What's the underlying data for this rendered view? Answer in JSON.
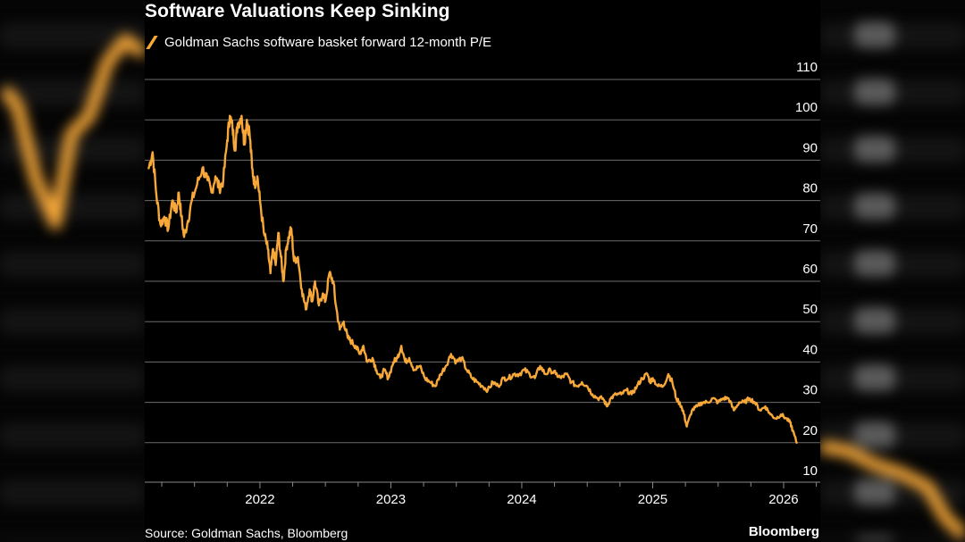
{
  "chart_data": {
    "type": "line",
    "title": "Software Valuations Keep Sinking",
    "series": [
      {
        "name": "Goldman Sachs software basket forward 12-month P/E",
        "color": "#f7a839",
        "points": [
          [
            2021.15,
            88
          ],
          [
            2021.18,
            92
          ],
          [
            2021.21,
            81
          ],
          [
            2021.24,
            74
          ],
          [
            2021.27,
            76
          ],
          [
            2021.3,
            73
          ],
          [
            2021.33,
            80
          ],
          [
            2021.36,
            77
          ],
          [
            2021.38,
            82
          ],
          [
            2021.4,
            76
          ],
          [
            2021.42,
            71
          ],
          [
            2021.45,
            75
          ],
          [
            2021.48,
            80
          ],
          [
            2021.52,
            84
          ],
          [
            2021.56,
            88
          ],
          [
            2021.6,
            85
          ],
          [
            2021.63,
            82
          ],
          [
            2021.66,
            86
          ],
          [
            2021.69,
            83
          ],
          [
            2021.72,
            85
          ],
          [
            2021.75,
            95
          ],
          [
            2021.77,
            101
          ],
          [
            2021.79,
            98
          ],
          [
            2021.81,
            93
          ],
          [
            2021.83,
            99
          ],
          [
            2021.86,
            101
          ],
          [
            2021.88,
            94
          ],
          [
            2021.9,
            100
          ],
          [
            2021.92,
            97
          ],
          [
            2021.94,
            88
          ],
          [
            2021.96,
            84
          ],
          [
            2021.98,
            86
          ],
          [
            2022.0,
            80
          ],
          [
            2022.03,
            72
          ],
          [
            2022.06,
            68
          ],
          [
            2022.08,
            62
          ],
          [
            2022.1,
            68
          ],
          [
            2022.12,
            64
          ],
          [
            2022.14,
            72
          ],
          [
            2022.16,
            66
          ],
          [
            2022.18,
            60
          ],
          [
            2022.2,
            68
          ],
          [
            2022.22,
            71
          ],
          [
            2022.24,
            73
          ],
          [
            2022.26,
            65
          ],
          [
            2022.29,
            66
          ],
          [
            2022.32,
            58
          ],
          [
            2022.35,
            53
          ],
          [
            2022.38,
            58
          ],
          [
            2022.4,
            55
          ],
          [
            2022.42,
            60
          ],
          [
            2022.45,
            54
          ],
          [
            2022.48,
            57
          ],
          [
            2022.5,
            55
          ],
          [
            2022.53,
            62
          ],
          [
            2022.56,
            60
          ],
          [
            2022.58,
            54
          ],
          [
            2022.61,
            48
          ],
          [
            2022.64,
            50
          ],
          [
            2022.67,
            46
          ],
          [
            2022.7,
            45
          ],
          [
            2022.73,
            44
          ],
          [
            2022.76,
            42
          ],
          [
            2022.79,
            44
          ],
          [
            2022.82,
            40
          ],
          [
            2022.86,
            41
          ],
          [
            2022.89,
            38
          ],
          [
            2022.92,
            36
          ],
          [
            2022.95,
            38
          ],
          [
            2022.98,
            36
          ],
          [
            2023.02,
            40
          ],
          [
            2023.05,
            41
          ],
          [
            2023.08,
            44
          ],
          [
            2023.11,
            40
          ],
          [
            2023.14,
            41
          ],
          [
            2023.18,
            38
          ],
          [
            2023.22,
            39
          ],
          [
            2023.26,
            36
          ],
          [
            2023.3,
            35
          ],
          [
            2023.34,
            34
          ],
          [
            2023.38,
            37
          ],
          [
            2023.42,
            39
          ],
          [
            2023.46,
            42
          ],
          [
            2023.5,
            40
          ],
          [
            2023.54,
            41
          ],
          [
            2023.58,
            38
          ],
          [
            2023.62,
            36
          ],
          [
            2023.66,
            35
          ],
          [
            2023.7,
            34
          ],
          [
            2023.74,
            33
          ],
          [
            2023.78,
            35
          ],
          [
            2023.82,
            34
          ],
          [
            2023.86,
            36
          ],
          [
            2023.9,
            36
          ],
          [
            2023.94,
            37
          ],
          [
            2023.98,
            37
          ],
          [
            2024.02,
            38
          ],
          [
            2024.06,
            37
          ],
          [
            2024.1,
            36
          ],
          [
            2024.14,
            39
          ],
          [
            2024.18,
            37
          ],
          [
            2024.22,
            38
          ],
          [
            2024.26,
            37
          ],
          [
            2024.3,
            36
          ],
          [
            2024.34,
            37
          ],
          [
            2024.38,
            35
          ],
          [
            2024.42,
            34
          ],
          [
            2024.46,
            35
          ],
          [
            2024.5,
            34
          ],
          [
            2024.54,
            32
          ],
          [
            2024.58,
            31
          ],
          [
            2024.62,
            31
          ],
          [
            2024.65,
            29
          ],
          [
            2024.68,
            31
          ],
          [
            2024.72,
            32
          ],
          [
            2024.76,
            32
          ],
          [
            2024.8,
            33
          ],
          [
            2024.84,
            32
          ],
          [
            2024.88,
            34
          ],
          [
            2024.92,
            36
          ],
          [
            2024.96,
            37
          ],
          [
            2024.98,
            35
          ],
          [
            2025.0,
            36
          ],
          [
            2025.04,
            34
          ],
          [
            2025.08,
            34
          ],
          [
            2025.12,
            37
          ],
          [
            2025.15,
            35
          ],
          [
            2025.18,
            31
          ],
          [
            2025.22,
            29
          ],
          [
            2025.24,
            27
          ],
          [
            2025.26,
            24
          ],
          [
            2025.3,
            28
          ],
          [
            2025.34,
            29
          ],
          [
            2025.38,
            30
          ],
          [
            2025.42,
            30
          ],
          [
            2025.46,
            31
          ],
          [
            2025.5,
            30
          ],
          [
            2025.54,
            31
          ],
          [
            2025.58,
            31
          ],
          [
            2025.62,
            28
          ],
          [
            2025.66,
            30
          ],
          [
            2025.7,
            30
          ],
          [
            2025.74,
            31
          ],
          [
            2025.78,
            30
          ],
          [
            2025.82,
            28
          ],
          [
            2025.86,
            29
          ],
          [
            2025.9,
            27
          ],
          [
            2025.94,
            26
          ],
          [
            2025.98,
            27
          ],
          [
            2026.02,
            26
          ],
          [
            2026.05,
            25
          ],
          [
            2026.07,
            23
          ],
          [
            2026.1,
            20
          ]
        ]
      }
    ],
    "xlim": [
      2021.12,
      2026.28
    ],
    "ylim": [
      10,
      110
    ],
    "x_ticks": [
      "2022",
      "2023",
      "2024",
      "2025",
      "2026"
    ],
    "y_ticks": [
      "110",
      "100",
      "90",
      "80",
      "70",
      "60",
      "50",
      "40",
      "30",
      "20",
      "10"
    ],
    "grid": true,
    "y_axis_side": "right",
    "source": "Source: Goldman Sachs, Bloomberg",
    "brand": "Bloomberg"
  }
}
